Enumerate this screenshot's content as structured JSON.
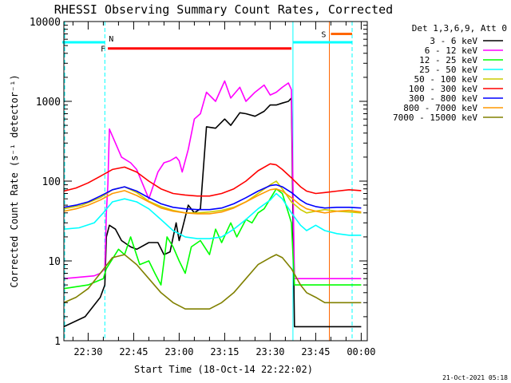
{
  "chart_data": {
    "type": "line",
    "title": "RHESSI Observing Summary Count Rates, Corrected",
    "xlabel": "Start Time (18-Oct-14 22:22:02)",
    "ylabel": "Corrected Count Rate (s⁻¹ detector⁻¹)",
    "yscale": "log",
    "ylim": [
      1,
      10000
    ],
    "xlim": [
      "22:22",
      "24:02"
    ],
    "y_ticks": [
      "1",
      "10",
      "100",
      "1000",
      "10000"
    ],
    "x_ticks": [
      {
        "t": "22:30",
        "m": 8
      },
      {
        "t": "22:45",
        "m": 23
      },
      {
        "t": "23:00",
        "m": 38
      },
      {
        "t": "23:15",
        "m": 53
      },
      {
        "t": "23:30",
        "m": 68
      },
      {
        "t": "23:45",
        "m": 83
      },
      {
        "t": "00:00",
        "m": 98
      }
    ],
    "legend_title": "Det 1,3,6,9, Att 0",
    "legend_position": "right",
    "footer": "21-Oct-2021 05:18",
    "series": [
      {
        "name": "3 - 6 keV",
        "color": "#000000",
        "x": [
          0,
          7,
          12,
          13.5,
          14,
          15,
          17,
          19,
          22,
          24,
          28,
          31,
          33,
          35,
          37,
          38,
          39,
          41,
          43,
          45,
          47,
          50,
          53,
          55,
          58,
          60,
          63,
          66,
          68,
          70,
          72,
          74,
          75,
          76,
          80,
          85,
          90,
          94,
          98
        ],
        "y": [
          1.5,
          2,
          3.5,
          5,
          20,
          28,
          25,
          18,
          15,
          14,
          17,
          17,
          12,
          13,
          30,
          18,
          25,
          50,
          40,
          45,
          480,
          460,
          600,
          500,
          720,
          700,
          650,
          750,
          900,
          900,
          950,
          1000,
          1100,
          1.5,
          1.5,
          1.5,
          1.5,
          1.5,
          1.5
        ]
      },
      {
        "name": "6 - 12 keV",
        "color": "#ff00ff",
        "x": [
          0,
          10,
          12,
          13.5,
          14,
          14.5,
          15,
          17,
          19,
          22,
          24,
          28,
          31,
          33,
          35,
          37,
          38,
          39,
          41,
          43,
          45,
          47,
          50,
          53,
          55,
          58,
          60,
          63,
          66,
          68,
          70,
          72,
          74,
          75,
          76,
          80,
          85,
          90,
          94,
          98
        ],
        "y": [
          6,
          6.5,
          7,
          8,
          40,
          90,
          450,
          300,
          200,
          170,
          140,
          60,
          130,
          170,
          180,
          200,
          180,
          130,
          250,
          600,
          700,
          1300,
          1000,
          1800,
          1100,
          1500,
          1000,
          1300,
          1600,
          1200,
          1300,
          1500,
          1700,
          1400,
          6,
          6,
          6,
          6,
          6,
          6
        ]
      },
      {
        "name": "12 - 25 keV",
        "color": "#00ff00",
        "x": [
          0,
          8,
          13,
          14,
          18,
          20,
          22,
          25,
          28,
          30,
          32,
          34,
          36,
          38,
          40,
          42,
          45,
          48,
          50,
          52,
          55,
          57,
          60,
          62,
          64,
          66,
          68,
          70,
          72,
          74,
          75,
          76,
          80,
          85,
          90,
          94,
          98
        ],
        "y": [
          4.5,
          5,
          6,
          8,
          14,
          12,
          20,
          9,
          10,
          7,
          5,
          20,
          15,
          10,
          7,
          15,
          18,
          12,
          25,
          17,
          30,
          20,
          33,
          30,
          40,
          45,
          60,
          80,
          70,
          40,
          30,
          5,
          5,
          5,
          5,
          5,
          5
        ]
      },
      {
        "name": "25 - 50 keV",
        "color": "#00ffff",
        "x": [
          0,
          5,
          10,
          13,
          16,
          20,
          24,
          28,
          32,
          36,
          40,
          44,
          48,
          52,
          56,
          60,
          64,
          68,
          70,
          72,
          75,
          78,
          80,
          83,
          86,
          90,
          94,
          98
        ],
        "y": [
          25,
          26,
          30,
          40,
          55,
          60,
          55,
          45,
          33,
          24,
          20,
          19,
          19,
          20,
          25,
          33,
          45,
          58,
          70,
          60,
          40,
          28,
          24,
          28,
          24,
          22,
          21,
          21
        ]
      },
      {
        "name": "50 - 100 keV",
        "color": "#cccc00",
        "x": [
          0,
          6,
          12,
          16,
          20,
          24,
          28,
          32,
          36,
          40,
          44,
          48,
          52,
          56,
          60,
          64,
          68,
          70,
          72,
          75,
          78,
          80,
          83,
          86,
          90,
          94,
          98
        ],
        "y": [
          45,
          50,
          62,
          78,
          85,
          72,
          56,
          48,
          43,
          40,
          40,
          41,
          43,
          47,
          55,
          70,
          90,
          100,
          80,
          55,
          44,
          40,
          42,
          44,
          42,
          41,
          40
        ]
      },
      {
        "name": "100 - 300 keV",
        "color": "#ff0000",
        "x": [
          0,
          4,
          8,
          12,
          16,
          20,
          24,
          28,
          32,
          36,
          40,
          44,
          48,
          52,
          56,
          60,
          64,
          68,
          70,
          72,
          75,
          78,
          80,
          83,
          86,
          90,
          94,
          98
        ],
        "y": [
          75,
          82,
          95,
          115,
          140,
          150,
          130,
          100,
          80,
          70,
          67,
          65,
          65,
          70,
          80,
          100,
          135,
          165,
          160,
          140,
          110,
          85,
          75,
          70,
          72,
          75,
          78,
          76
        ]
      },
      {
        "name": "300 - 800 keV",
        "color": "#0000ff",
        "x": [
          0,
          4,
          8,
          12,
          16,
          20,
          24,
          28,
          32,
          36,
          40,
          44,
          48,
          52,
          56,
          60,
          64,
          68,
          70,
          72,
          75,
          78,
          80,
          83,
          86,
          90,
          94,
          98
        ],
        "y": [
          47,
          50,
          55,
          65,
          78,
          85,
          75,
          62,
          52,
          47,
          45,
          44,
          44,
          46,
          52,
          62,
          75,
          88,
          90,
          85,
          72,
          58,
          52,
          48,
          46,
          47,
          47,
          46
        ]
      },
      {
        "name": "800 - 7000 keV",
        "color": "#ff9900",
        "x": [
          0,
          4,
          8,
          12,
          16,
          20,
          24,
          28,
          32,
          36,
          40,
          44,
          48,
          52,
          56,
          60,
          64,
          68,
          70,
          72,
          75,
          78,
          80,
          83,
          86,
          90,
          94,
          98
        ],
        "y": [
          42,
          45,
          50,
          58,
          70,
          76,
          66,
          55,
          46,
          42,
          40,
          39,
          39,
          41,
          46,
          55,
          66,
          78,
          80,
          75,
          62,
          50,
          45,
          42,
          40,
          42,
          43,
          41
        ]
      },
      {
        "name": "7000 - 15000 keV",
        "color": "#808000",
        "x": [
          0,
          4,
          8,
          12,
          16,
          20,
          24,
          28,
          32,
          36,
          40,
          44,
          48,
          52,
          56,
          60,
          64,
          68,
          70,
          72,
          75,
          78,
          80,
          83,
          86,
          90,
          94,
          98
        ],
        "y": [
          3,
          3.5,
          4.5,
          7,
          11,
          12,
          9,
          6,
          4,
          3,
          2.5,
          2.5,
          2.5,
          3,
          4,
          6,
          9,
          11,
          12,
          11,
          8,
          5,
          4,
          3.5,
          3,
          3,
          3,
          3
        ]
      }
    ],
    "attenuator_state_bars": [
      {
        "label": "",
        "color": "#00ffff",
        "x0": -1,
        "x1": 13.5,
        "y": 5500
      },
      {
        "label": "N",
        "color": "#00ffff",
        "x0": 13.5,
        "x1": 13.5,
        "y": 5500
      },
      {
        "label": "",
        "color": "#00ffff",
        "x0": 75.5,
        "x1": 95,
        "y": 5500
      },
      {
        "label": "F",
        "color": "#ff0000",
        "x0": 14.5,
        "x1": 75,
        "y": 4600
      },
      {
        "label": "S",
        "color": "#ff6600",
        "x0": 88,
        "x1": 95,
        "y": 7000
      }
    ],
    "vertical_markers": [
      {
        "x": -1,
        "color": "#00ffff",
        "style": "dashed"
      },
      {
        "x": 13.5,
        "color": "#00ffff",
        "style": "dashed"
      },
      {
        "x": 75.5,
        "color": "#00ffff",
        "style": "solid"
      },
      {
        "x": 87.5,
        "color": "#ff6600",
        "style": "solid"
      },
      {
        "x": 95,
        "color": "#00ffff",
        "style": "dashed"
      }
    ]
  }
}
